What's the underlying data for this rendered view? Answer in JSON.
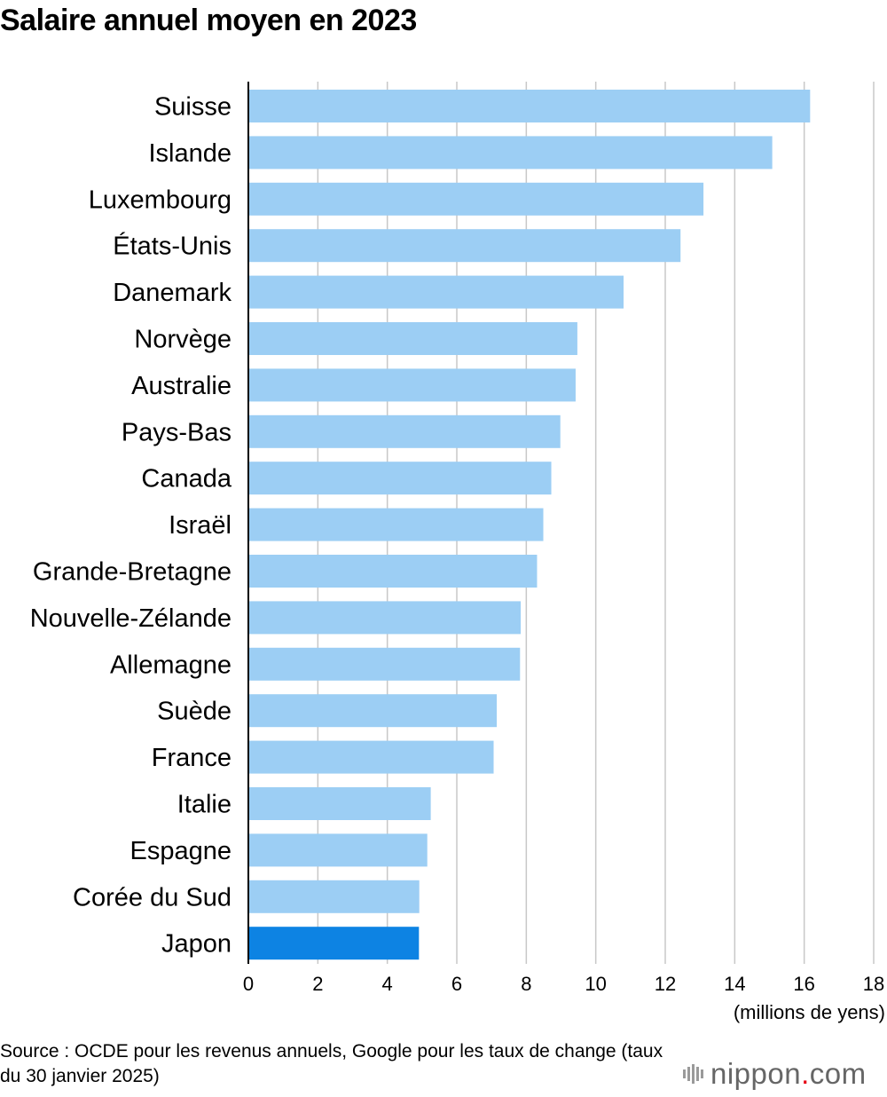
{
  "chart_data": {
    "type": "bar",
    "orientation": "horizontal",
    "title": "Salaire annuel moyen en 2023",
    "categories": [
      "Suisse",
      "Islande",
      "Luxembourg",
      "États-Unis",
      "Danemark",
      "Norvège",
      "Australie",
      "Pays-Bas",
      "Canada",
      "Israël",
      "Grande-Bretagne",
      "Nouvelle-Zélande",
      "Allemagne",
      "Suède",
      "France",
      "Italie",
      "Espagne",
      "Corée du Sud",
      "Japon"
    ],
    "values": [
      16.17,
      15.08,
      13.1,
      12.44,
      10.8,
      9.47,
      9.42,
      8.98,
      8.72,
      8.49,
      8.31,
      7.84,
      7.82,
      7.15,
      7.06,
      5.25,
      5.15,
      4.92,
      4.91
    ],
    "highlight": "Japon",
    "xlabel": "(millions de yens)",
    "ylabel": "",
    "xlim": [
      0,
      18
    ],
    "xticks": [
      0,
      2,
      4,
      6,
      8,
      10,
      12,
      14,
      16,
      18
    ],
    "grid": true,
    "colors": {
      "bar": "#9ccef4",
      "highlight": "#0d83e3",
      "grid": "#c8c8c8",
      "axis": "#000000"
    }
  },
  "source": "Source : OCDE pour les revenus annuels, Google pour les taux de change (taux du 30 janvier 2025)",
  "logo": {
    "name": "nippon",
    "dot": ".",
    "suffix": "com"
  }
}
